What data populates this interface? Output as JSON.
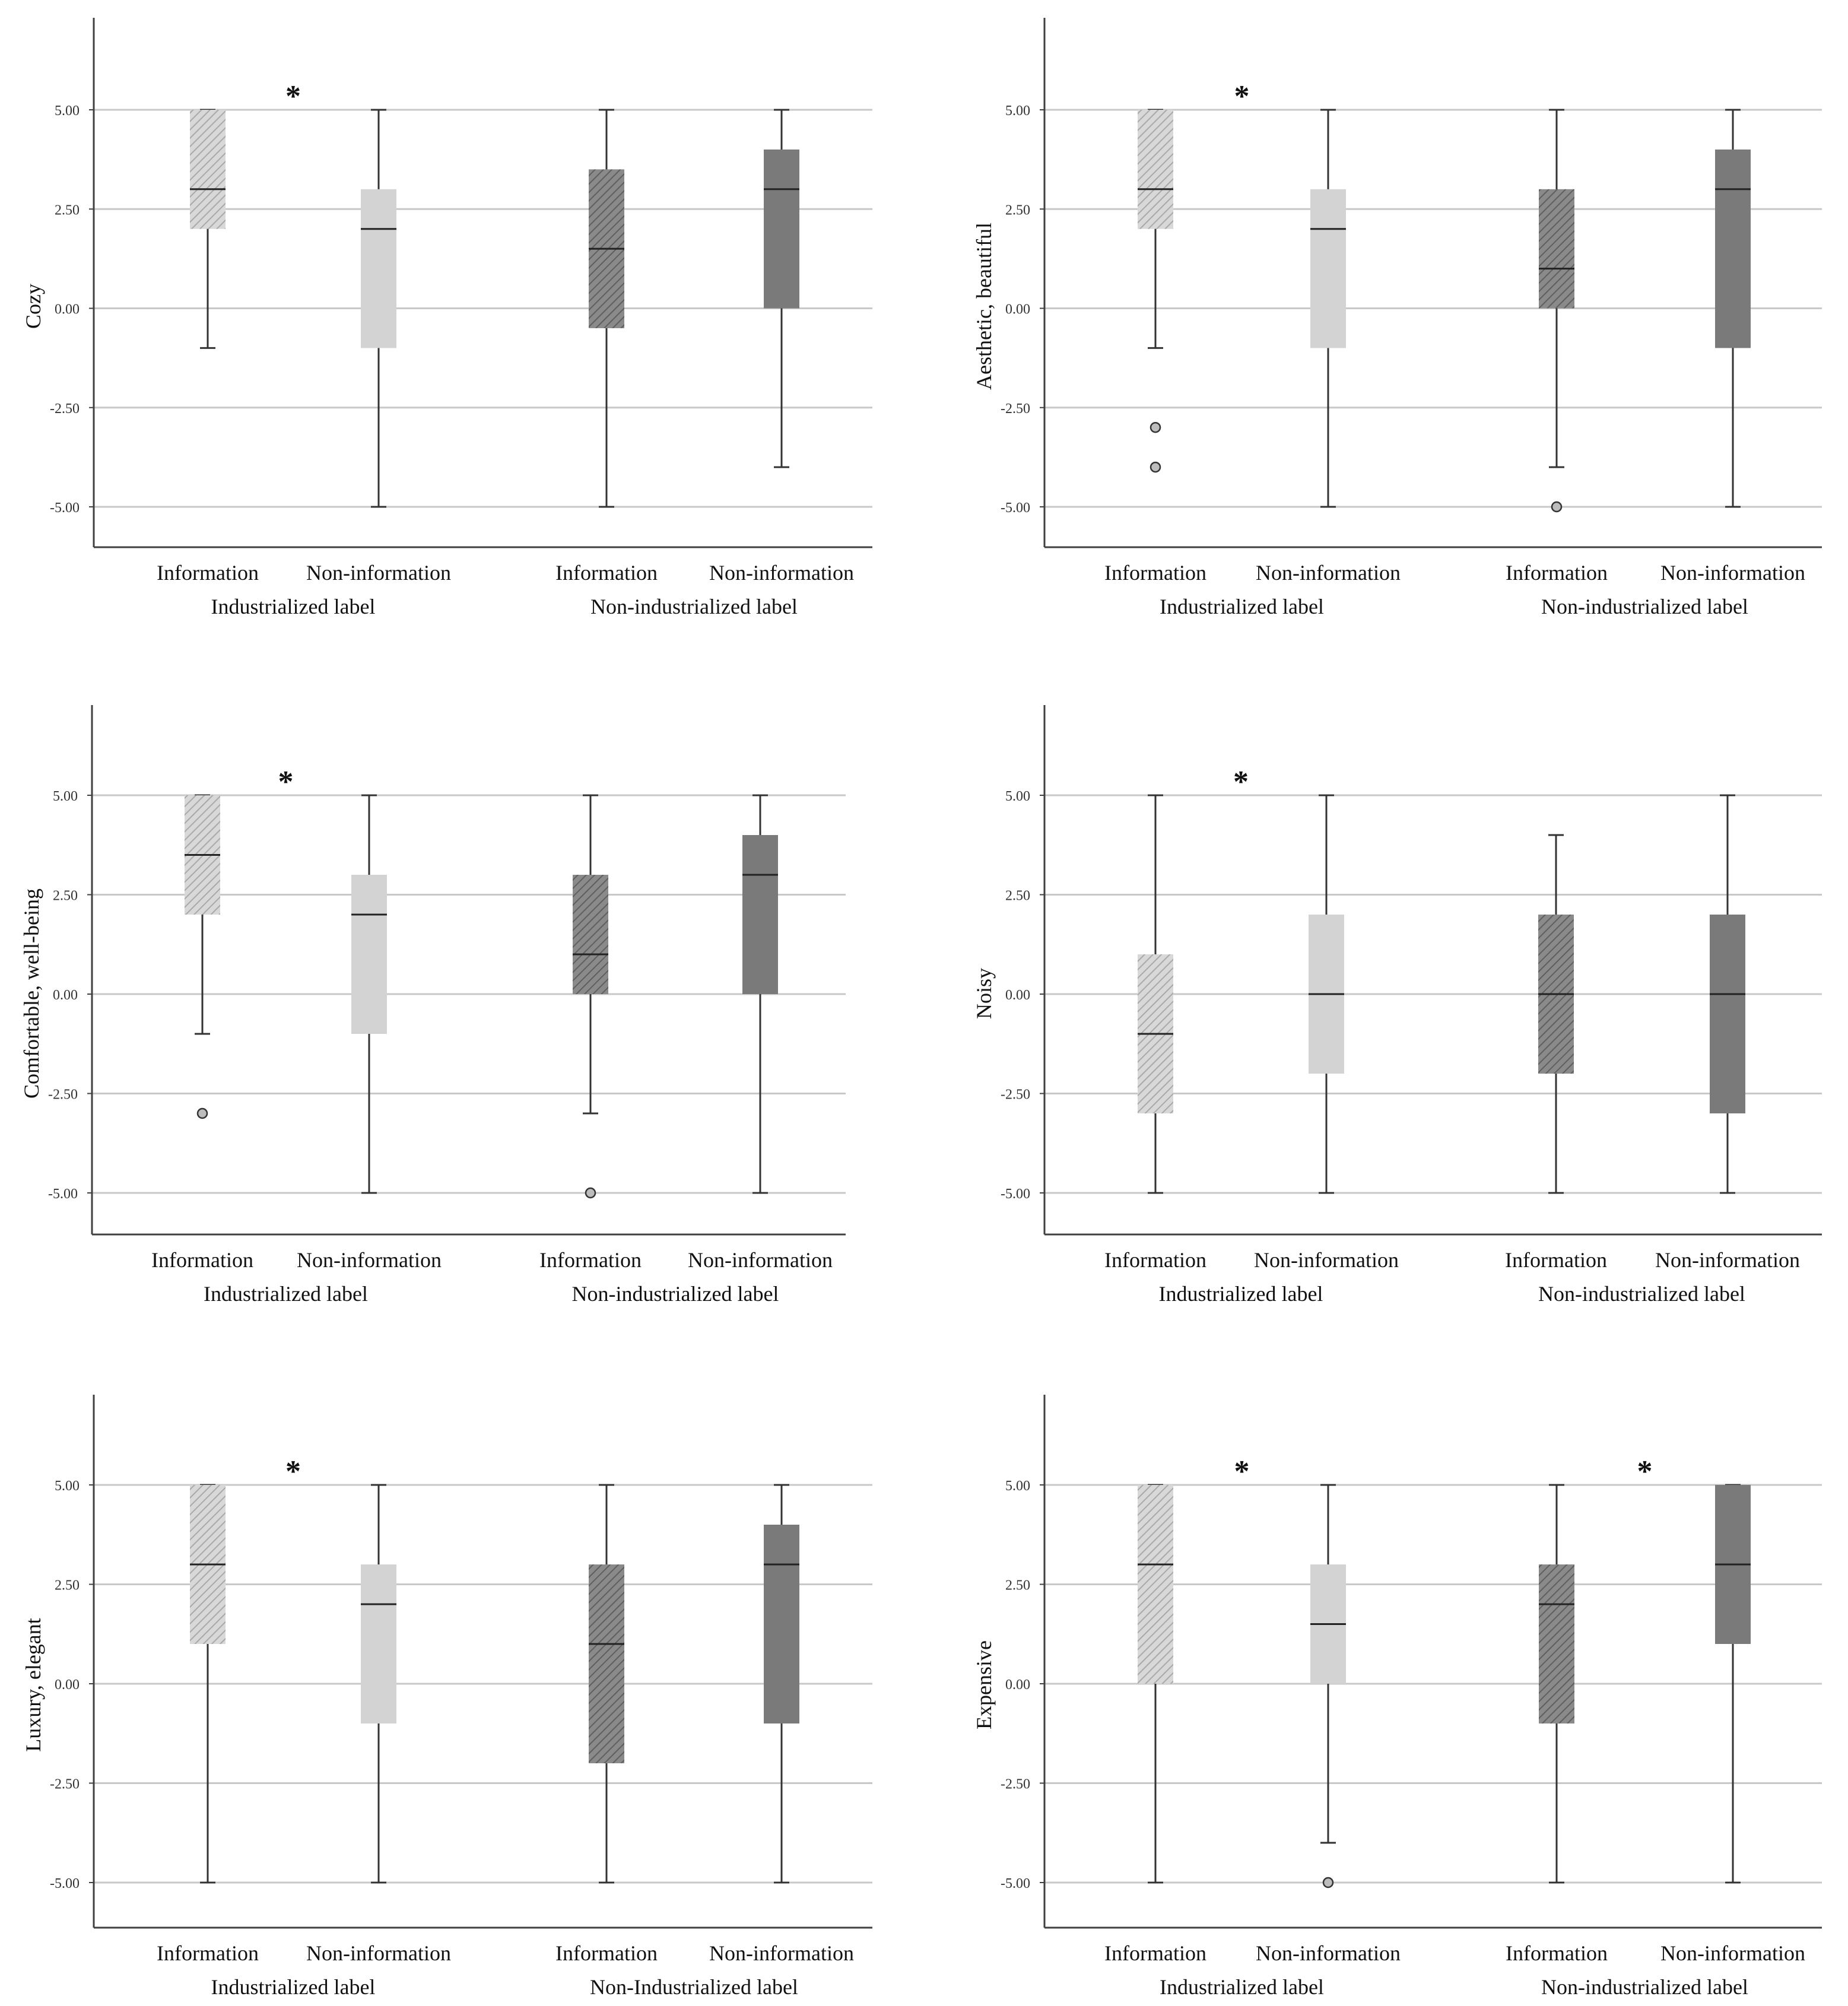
{
  "colors": {
    "info_industrial": "#d0d0d0",
    "noninfo_industrial": "#d3d3d3",
    "info_nonindustrial": "#7d7d7d",
    "noninfo_nonindustrial": "#7a7a7a",
    "grid": "#c8c8c8",
    "axis": "#404040",
    "whisker": "#333333",
    "median": "#222222",
    "outlier_fill": "#bdbdbd"
  },
  "chart_data": [
    {
      "type": "boxplot",
      "ylabel": "Cozy",
      "ylim": [
        -6.0,
        7.5
      ],
      "yticks": [
        5,
        2.5,
        0,
        -2.5,
        -5
      ],
      "ytick_labels": [
        "5.00",
        "2.50",
        "0.00",
        "-2.50",
        "-5.00"
      ],
      "groups": [
        "Industrialized label",
        "Non-industrialized label"
      ],
      "boxes": [
        {
          "label": "Information",
          "group": 0,
          "pattern": "hatch-light",
          "min": -1,
          "q1": 2,
          "median": 3,
          "q3": 5,
          "max": 5,
          "outliers": []
        },
        {
          "label": "Non-information",
          "group": 0,
          "pattern": "solid-light",
          "min": -5,
          "q1": -1,
          "median": 2,
          "q3": 3,
          "max": 5,
          "outliers": []
        },
        {
          "label": "Information",
          "group": 1,
          "pattern": "hatch-dark",
          "min": -5,
          "q1": -0.5,
          "median": 1.5,
          "q3": 3.5,
          "max": 5,
          "outliers": []
        },
        {
          "label": "Non-information",
          "group": 1,
          "pattern": "solid-dark",
          "min": -4,
          "q1": 0,
          "median": 3,
          "q3": 4,
          "max": 5,
          "outliers": []
        }
      ],
      "significance": [
        {
          "label": "*",
          "between": [
            0,
            1
          ],
          "y": 5.6
        }
      ]
    },
    {
      "type": "boxplot",
      "ylabel": "Aesthetic, beautiful",
      "ylim": [
        -6.0,
        7.5
      ],
      "yticks": [
        5,
        2.5,
        0,
        -2.5,
        -5
      ],
      "ytick_labels": [
        "5.00",
        "2.50",
        "0.00",
        "-2.50",
        "-5.00"
      ],
      "groups": [
        "Industrialized label",
        "Non-industrialized label"
      ],
      "boxes": [
        {
          "label": "Information",
          "group": 0,
          "pattern": "hatch-light",
          "min": -1,
          "q1": 2,
          "median": 3,
          "q3": 5,
          "max": 5,
          "outliers": [
            -3,
            -4
          ]
        },
        {
          "label": "Non-information",
          "group": 0,
          "pattern": "solid-light",
          "min": -5,
          "q1": -1,
          "median": 2,
          "q3": 3,
          "max": 5,
          "outliers": []
        },
        {
          "label": "Information",
          "group": 1,
          "pattern": "hatch-dark",
          "min": -4,
          "q1": 0,
          "median": 1,
          "q3": 3,
          "max": 5,
          "outliers": [
            -5
          ]
        },
        {
          "label": "Non-information",
          "group": 1,
          "pattern": "solid-dark",
          "min": -5,
          "q1": -1,
          "median": 3,
          "q3": 4,
          "max": 5,
          "outliers": []
        }
      ],
      "significance": [
        {
          "label": "*",
          "between": [
            0,
            1
          ],
          "y": 5.6
        }
      ]
    },
    {
      "type": "boxplot",
      "ylabel": "Comfortable, well-being",
      "ylim": [
        -6.0,
        7.5
      ],
      "yticks": [
        5,
        2.5,
        0,
        -2.5,
        -5
      ],
      "ytick_labels": [
        "5.00",
        "2.50",
        "0.00",
        "-2.50",
        "-5.00"
      ],
      "groups": [
        "Industrialized label",
        "Non-industrialized label"
      ],
      "boxes": [
        {
          "label": "Information",
          "group": 0,
          "pattern": "hatch-light",
          "min": -1,
          "q1": 2,
          "median": 3.5,
          "q3": 5,
          "max": 5,
          "outliers": [
            -3
          ]
        },
        {
          "label": "Non-information",
          "group": 0,
          "pattern": "solid-light",
          "min": -5,
          "q1": -1,
          "median": 2,
          "q3": 3,
          "max": 5,
          "outliers": []
        },
        {
          "label": "Information",
          "group": 1,
          "pattern": "hatch-dark",
          "min": -3,
          "q1": 0,
          "median": 1,
          "q3": 3,
          "max": 5,
          "outliers": [
            -5
          ]
        },
        {
          "label": "Non-information",
          "group": 1,
          "pattern": "solid-dark",
          "min": -5,
          "q1": 0,
          "median": 3,
          "q3": 4,
          "max": 5,
          "outliers": []
        }
      ],
      "significance": [
        {
          "label": "*",
          "between": [
            0,
            1
          ],
          "y": 5.6
        }
      ]
    },
    {
      "type": "boxplot",
      "ylabel": "Noisy",
      "ylim": [
        -6.0,
        7.5
      ],
      "yticks": [
        5,
        2.5,
        0,
        -2.5,
        -5
      ],
      "ytick_labels": [
        "5.00",
        "2.50",
        "0.00",
        "-2.50",
        "-5.00"
      ],
      "groups": [
        "Industrialized label",
        "Non-industrialized label"
      ],
      "boxes": [
        {
          "label": "Information",
          "group": 0,
          "pattern": "hatch-light",
          "min": -5,
          "q1": -3,
          "median": -1,
          "q3": 1,
          "max": 5,
          "outliers": []
        },
        {
          "label": "Non-information",
          "group": 0,
          "pattern": "solid-light",
          "min": -5,
          "q1": -2,
          "median": 0,
          "q3": 2,
          "max": 5,
          "outliers": []
        },
        {
          "label": "Information",
          "group": 1,
          "pattern": "hatch-dark",
          "min": -5,
          "q1": -2,
          "median": 0,
          "q3": 2,
          "max": 4,
          "outliers": []
        },
        {
          "label": "Non-information",
          "group": 1,
          "pattern": "solid-dark",
          "min": -5,
          "q1": -3,
          "median": 0,
          "q3": 2,
          "max": 5,
          "outliers": []
        }
      ],
      "significance": [
        {
          "label": "*",
          "between": [
            0,
            1
          ],
          "y": 5.6
        }
      ]
    },
    {
      "type": "boxplot",
      "ylabel": "Luxury, elegant",
      "ylim": [
        -6.0,
        7.5
      ],
      "yticks": [
        5,
        2.5,
        0,
        -2.5,
        -5
      ],
      "ytick_labels": [
        "5.00",
        "2.50",
        "0.00",
        "-2.50",
        "-5.00"
      ],
      "groups": [
        "Industrialized label",
        "Non-Industrialized label"
      ],
      "boxes": [
        {
          "label": "Information",
          "group": 0,
          "pattern": "hatch-light",
          "min": -5,
          "q1": 1,
          "median": 3,
          "q3": 5,
          "max": 5,
          "outliers": []
        },
        {
          "label": "Non-information",
          "group": 0,
          "pattern": "solid-light",
          "min": -5,
          "q1": -1,
          "median": 2,
          "q3": 3,
          "max": 5,
          "outliers": []
        },
        {
          "label": "Information",
          "group": 1,
          "pattern": "hatch-dark",
          "min": -5,
          "q1": -2,
          "median": 1,
          "q3": 3,
          "max": 5,
          "outliers": []
        },
        {
          "label": "Non-information",
          "group": 1,
          "pattern": "solid-dark",
          "min": -5,
          "q1": -1,
          "median": 3,
          "q3": 4,
          "max": 5,
          "outliers": []
        }
      ],
      "significance": [
        {
          "label": "*",
          "between": [
            0,
            1
          ],
          "y": 5.6
        }
      ]
    },
    {
      "type": "boxplot",
      "ylabel": "Expensive",
      "ylim": [
        -6.0,
        7.5
      ],
      "yticks": [
        5,
        2.5,
        0,
        -2.5,
        -5
      ],
      "ytick_labels": [
        "5.00",
        "2.50",
        "0.00",
        "-2.50",
        "-5.00"
      ],
      "groups": [
        "Industrialized label",
        "Non-industrialized label"
      ],
      "boxes": [
        {
          "label": "Information",
          "group": 0,
          "pattern": "hatch-light",
          "min": -5,
          "q1": 0,
          "median": 3,
          "q3": 5,
          "max": 5,
          "outliers": []
        },
        {
          "label": "Non-information",
          "group": 0,
          "pattern": "solid-light",
          "min": -4,
          "q1": 0,
          "median": 1.5,
          "q3": 3,
          "max": 5,
          "outliers": [
            -5
          ]
        },
        {
          "label": "Information",
          "group": 1,
          "pattern": "hatch-dark",
          "min": -5,
          "q1": -1,
          "median": 2,
          "q3": 3,
          "max": 5,
          "outliers": []
        },
        {
          "label": "Non-information",
          "group": 1,
          "pattern": "solid-dark",
          "min": -5,
          "q1": 1,
          "median": 3,
          "q3": 5,
          "max": 5,
          "outliers": []
        }
      ],
      "significance": [
        {
          "label": "*",
          "between": [
            0,
            1
          ],
          "y": 5.6
        },
        {
          "label": "*",
          "between": [
            2,
            3
          ],
          "y": 5.6
        }
      ]
    }
  ]
}
